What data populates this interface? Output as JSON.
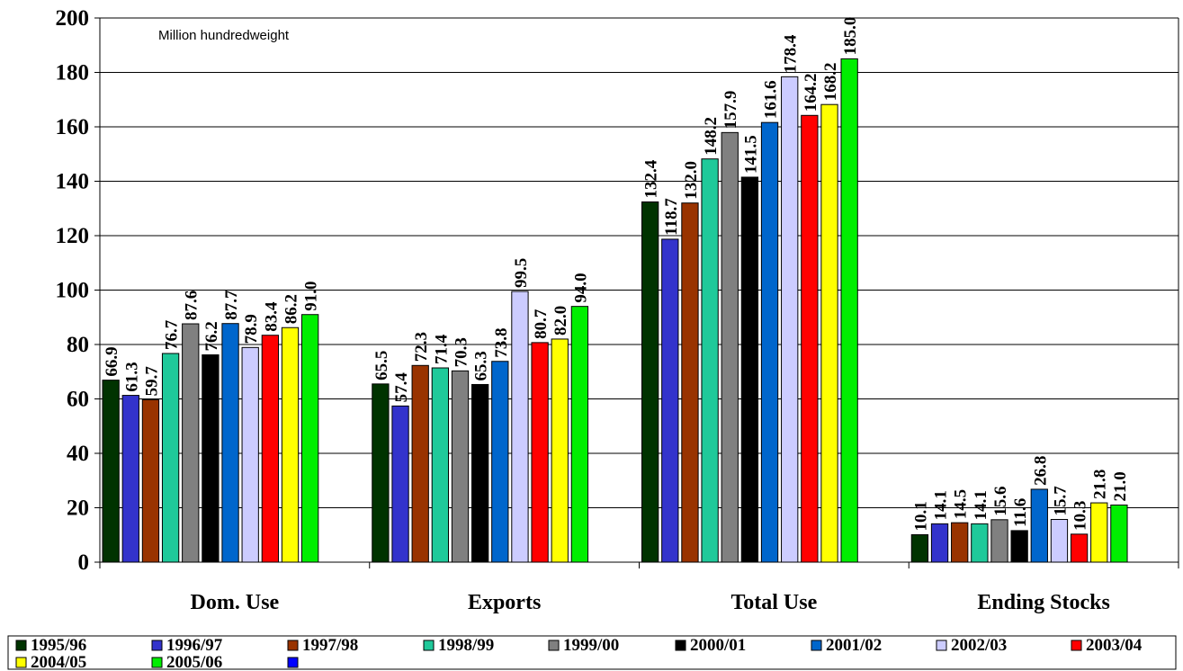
{
  "chart_data": {
    "type": "bar",
    "unit_note": "Million hundredweight",
    "categories": [
      "Dom. Use",
      "Exports",
      "Total Use",
      "Ending Stocks"
    ],
    "ylim": [
      0,
      200
    ],
    "yticks": [
      0,
      20,
      40,
      60,
      80,
      100,
      120,
      140,
      160,
      180,
      200
    ],
    "grid": true,
    "legend_position": "bottom",
    "series": [
      {
        "name": "1995/96",
        "color": "#003300",
        "values": [
          66.9,
          65.5,
          132.4,
          10.1
        ],
        "labels": [
          "66.9",
          "65.5",
          "132.4",
          "10.1"
        ]
      },
      {
        "name": "1996/97",
        "color": "#3333cc",
        "values": [
          61.3,
          57.4,
          118.7,
          14.1
        ],
        "labels": [
          "61.3",
          "57.4",
          "118.7",
          "14.1"
        ]
      },
      {
        "name": "1997/98",
        "color": "#993300",
        "values": [
          59.7,
          72.3,
          132.0,
          14.5
        ],
        "labels": [
          "59.7",
          "72.3",
          "132.0",
          "14.5"
        ]
      },
      {
        "name": "1998/99",
        "color": "#1fc99a",
        "values": [
          76.7,
          71.4,
          148.2,
          14.1
        ],
        "labels": [
          "76.7",
          "71.4",
          "148.2",
          "14.1"
        ]
      },
      {
        "name": "1999/00",
        "color": "#808080",
        "values": [
          87.6,
          70.3,
          157.9,
          15.6
        ],
        "labels": [
          "87.6",
          "70.3",
          "157.9",
          "15.6"
        ]
      },
      {
        "name": "2000/01",
        "color": "#000000",
        "values": [
          76.2,
          65.3,
          141.5,
          11.6
        ],
        "labels": [
          "76.2",
          "65.3",
          "141.5",
          "11.6"
        ]
      },
      {
        "name": "2001/02",
        "color": "#0066cc",
        "values": [
          87.7,
          73.8,
          161.6,
          26.8
        ],
        "labels": [
          "87.7",
          "73.8",
          "161.6",
          "26.8"
        ]
      },
      {
        "name": "2002/03",
        "color": "#ccccff",
        "values": [
          78.9,
          99.5,
          178.4,
          15.7
        ],
        "labels": [
          "78.9",
          "99.5",
          "178.4",
          "15.7"
        ]
      },
      {
        "name": "2003/04",
        "color": "#ff0000",
        "values": [
          83.4,
          80.7,
          164.2,
          10.3
        ],
        "labels": [
          "83.4",
          "80.7",
          "164.2",
          "10.3"
        ]
      },
      {
        "name": "2004/05",
        "color": "#ffff00",
        "values": [
          86.2,
          82.0,
          168.2,
          21.8
        ],
        "labels": [
          "86.2",
          "82.0",
          "168.2",
          "21.8"
        ]
      },
      {
        "name": "2005/06",
        "color": "#00ee00",
        "values": [
          91.0,
          94.0,
          185.0,
          21.0
        ],
        "labels": [
          "91.0",
          "94.0",
          "185.0",
          "21.0"
        ]
      }
    ],
    "extra_legend_swatch_color": "#0000ff"
  }
}
